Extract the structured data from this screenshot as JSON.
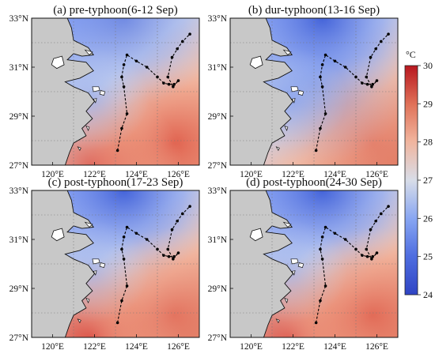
{
  "panels": [
    {
      "title": "(a) pre-typhoon(6-12 Sep)",
      "sst_pattern": "warm offshore south/east, cool coastal plume and cool northern shelf",
      "x_tick_labels": [
        "120°E",
        "122°E",
        "124°E",
        "126°E"
      ],
      "y_tick_labels": [
        "33°N",
        "31°N",
        "29°N",
        "27°N"
      ]
    },
    {
      "title": "(b) dur-typhoon(13-16 Sep)",
      "sst_pattern": "widespread cooling along track and shelf, warm only in southeast corner",
      "x_tick_labels": [
        "120°E",
        "122°E",
        "124°E",
        "126°E"
      ],
      "y_tick_labels": [
        "33°N",
        "31°N",
        "29°N",
        "27°N"
      ]
    },
    {
      "title": "(c) post-typhoon(17-23 Sep)",
      "sst_pattern": "cool north and central shelf, warm band in south",
      "x_tick_labels": [
        "120°E",
        "122°E",
        "124°E",
        "126°E"
      ],
      "y_tick_labels": [
        "33°N",
        "31°N",
        "29°N",
        "27°N"
      ]
    },
    {
      "title": "(d) post-typhoon(24-30 Sep)",
      "sst_pattern": "cool north, partial recovery with warm water in the south",
      "x_tick_labels": [
        "120°E",
        "122°E",
        "124°E",
        "126°E"
      ],
      "y_tick_labels": [
        "33°N",
        "31°N",
        "29°N",
        "27°N"
      ]
    }
  ],
  "map": {
    "lon_range": [
      119,
      127
    ],
    "lat_range": [
      27,
      33
    ],
    "land_color": "#c8c8c8",
    "coast_color": "#111111",
    "grid": "dotted",
    "typhoon_track_points": [
      [
        123.1,
        27.6
      ],
      [
        123.3,
        28.5
      ],
      [
        123.55,
        29.1
      ],
      [
        123.4,
        30.2
      ],
      [
        123.3,
        30.6
      ],
      [
        123.4,
        31.1
      ],
      [
        123.55,
        31.5
      ],
      [
        124.0,
        31.25
      ],
      [
        124.5,
        31.0
      ],
      [
        125.0,
        30.6
      ],
      [
        125.3,
        30.35
      ],
      [
        125.55,
        30.3
      ],
      [
        125.8,
        30.3
      ],
      [
        126.0,
        30.45
      ],
      [
        125.75,
        30.2
      ],
      [
        125.5,
        30.6
      ],
      [
        125.7,
        31.4
      ],
      [
        125.95,
        31.75
      ],
      [
        126.2,
        32.05
      ],
      [
        126.55,
        32.35
      ]
    ],
    "track_color": "#000000"
  },
  "colorbar": {
    "unit": "°C",
    "min": 24,
    "max": 30,
    "tick_labels": [
      "30",
      "29",
      "28",
      "27",
      "26",
      "25",
      "24"
    ],
    "colors": [
      "#3049c9",
      "#6f8ff2",
      "#a9c0f4",
      "#d9dde6",
      "#f2c2ad",
      "#e88b70",
      "#c72226"
    ]
  }
}
